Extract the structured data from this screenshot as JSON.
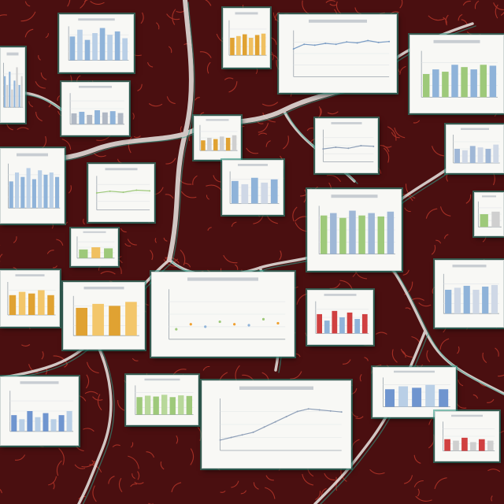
{
  "scene": {
    "background_color": "#4a0f10",
    "vein_color": "#e9e6e3",
    "vein_accent_color": "#2fa58f",
    "card_background": "#f8f8f5"
  },
  "thumbnails": [
    {
      "kind": "bar",
      "palette": [
        "#8fb3d9",
        "#b9cfe6"
      ],
      "values": [
        0.7,
        0.9,
        0.6,
        0.8,
        0.95,
        0.75,
        0.85,
        0.65
      ]
    },
    {
      "kind": "bar",
      "palette": [
        "#e0a232",
        "#f0c060"
      ],
      "values": [
        0.5,
        0.55,
        0.6,
        0.5,
        0.58,
        0.62
      ]
    },
    {
      "kind": "line",
      "palette": [
        "#7a9cc4"
      ],
      "values": [
        0.6,
        0.7,
        0.68,
        0.72,
        0.7,
        0.75,
        0.73,
        0.78,
        0.74,
        0.76
      ]
    },
    {
      "kind": "bar",
      "palette": [
        "#9ec97a",
        "#8fb3d9"
      ],
      "values": [
        0.5,
        0.6,
        0.55,
        0.7,
        0.65,
        0.6,
        0.7,
        0.68
      ]
    },
    {
      "kind": "bar",
      "palette": [
        "#8fb3d9",
        "#cfcfcf"
      ],
      "values": [
        0.7,
        0.5,
        0.8,
        0.4,
        0.6,
        0.9,
        0.5,
        0.7
      ]
    },
    {
      "kind": "bar",
      "palette": [
        "#b0b8c4",
        "#8fb3d9"
      ],
      "values": [
        0.35,
        0.4,
        0.3,
        0.45,
        0.38,
        0.42,
        0.36
      ]
    },
    {
      "kind": "bar",
      "palette": [
        "#e0a232",
        "#cfcfcf"
      ],
      "values": [
        0.4,
        0.5,
        0.45,
        0.55,
        0.5,
        0.6
      ]
    },
    {
      "kind": "line",
      "palette": [
        "#8fa0b8"
      ],
      "values": [
        0.4,
        0.45,
        0.42,
        0.5,
        0.48
      ]
    },
    {
      "kind": "bar",
      "palette": [
        "#9fb7d6",
        "#cfd8e6"
      ],
      "values": [
        0.5,
        0.45,
        0.6,
        0.55,
        0.5,
        0.65
      ]
    },
    {
      "kind": "bar",
      "palette": [
        "#8fb3d9",
        "#b9cfe6"
      ],
      "values": [
        0.6,
        0.8,
        0.7,
        0.9,
        0.65,
        0.85,
        0.75,
        0.8,
        0.7
      ]
    },
    {
      "kind": "line",
      "palette": [
        "#9ec97a"
      ],
      "values": [
        0.5,
        0.55,
        0.52,
        0.58,
        0.56
      ]
    },
    {
      "kind": "bar",
      "palette": [
        "#8fb3d9",
        "#cfd8e6"
      ],
      "values": [
        0.7,
        0.6,
        0.8,
        0.65,
        0.75
      ]
    },
    {
      "kind": "bar",
      "palette": [
        "#9ec97a",
        "#9fb7d6"
      ],
      "values": [
        0.8,
        0.85,
        0.75,
        0.9,
        0.8,
        0.85,
        0.78,
        0.88
      ]
    },
    {
      "kind": "bar",
      "palette": [
        "#9ec97a",
        "#cfcfcf"
      ],
      "values": [
        0.5,
        0.6
      ]
    },
    {
      "kind": "bar",
      "palette": [
        "#9ec97a",
        "#f0c060"
      ],
      "values": [
        0.4,
        0.5,
        0.45
      ]
    },
    {
      "kind": "bar",
      "palette": [
        "#e0a232",
        "#f3c66a"
      ],
      "values": [
        0.6,
        0.7,
        0.65,
        0.75,
        0.6
      ]
    },
    {
      "kind": "bar",
      "palette": [
        "#e0a232",
        "#f3c66a"
      ],
      "values": [
        0.7,
        0.8,
        0.75,
        0.85
      ]
    },
    {
      "kind": "scatter",
      "palette": [
        "#9ec97a",
        "#f0a030",
        "#8fb3d9"
      ],
      "values": [
        0.2,
        0.3,
        0.25,
        0.35,
        0.3,
        0.28,
        0.4,
        0.32
      ]
    },
    {
      "kind": "bar",
      "palette": [
        "#d04040",
        "#8fb3d9"
      ],
      "values": [
        0.6,
        0.4,
        0.7,
        0.5,
        0.65,
        0.45,
        0.6
      ]
    },
    {
      "kind": "bar",
      "palette": [
        "#8fb3d9",
        "#cfd8e6"
      ],
      "values": [
        0.6,
        0.65,
        0.7,
        0.6,
        0.68,
        0.72
      ]
    },
    {
      "kind": "bar",
      "palette": [
        "#6f95cf",
        "#b9cfe6"
      ],
      "values": [
        0.4,
        0.3,
        0.5,
        0.35,
        0.45,
        0.3,
        0.4,
        0.5
      ]
    },
    {
      "kind": "bar",
      "palette": [
        "#9ec97a",
        "#b8d89a"
      ],
      "values": [
        0.6,
        0.65,
        0.62,
        0.68,
        0.6,
        0.66,
        0.64
      ]
    },
    {
      "kind": "line",
      "palette": [
        "#8fa0b8"
      ],
      "values": [
        0.2,
        0.25,
        0.3,
        0.35,
        0.45,
        0.55,
        0.65,
        0.75,
        0.8,
        0.78,
        0.76,
        0.74
      ]
    },
    {
      "kind": "bar",
      "palette": [
        "#6f95cf",
        "#b9cfe6"
      ],
      "values": [
        0.6,
        0.7,
        0.65,
        0.75,
        0.6
      ]
    },
    {
      "kind": "bar",
      "palette": [
        "#d04040",
        "#cfcfcf"
      ],
      "values": [
        0.4,
        0.35,
        0.45,
        0.3,
        0.4,
        0.35
      ]
    }
  ]
}
